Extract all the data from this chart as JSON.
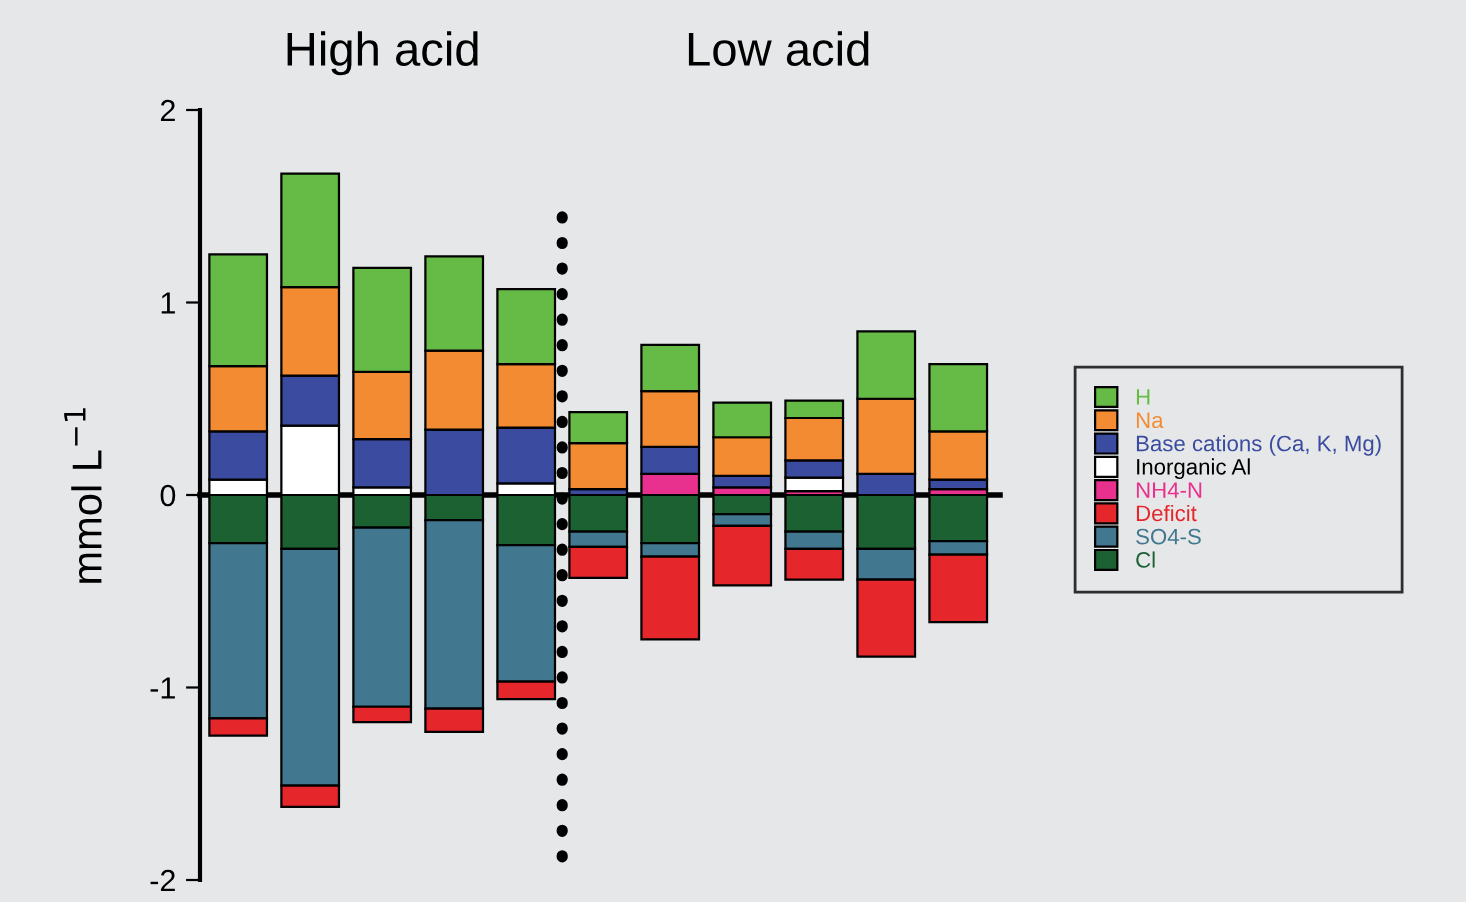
{
  "chart_data": {
    "type": "bar",
    "stacked": true,
    "ylabel": "mmol L$^{−1}$",
    "annotations": [
      "High acid",
      "Low acid"
    ],
    "categories": [
      null,
      null,
      null,
      null,
      null,
      null,
      null,
      null,
      null,
      null,
      null
    ],
    "series": [
      {
        "name": "Cl",
        "color": "#1b6132",
        "values": [
          -0.25,
          -0.28,
          -0.17,
          -0.13,
          -0.26,
          -0.19,
          -0.25,
          -0.1,
          -0.19,
          -0.28,
          -0.24
        ]
      },
      {
        "name": "SO4-S",
        "color": "#41788f",
        "values": [
          -0.91,
          -1.23,
          -0.93,
          -0.98,
          -0.71,
          -0.08,
          -0.07,
          -0.06,
          -0.09,
          -0.16,
          -0.07
        ]
      },
      {
        "name": "Deficit",
        "color": "#e5262a",
        "values": [
          -0.09,
          -0.11,
          -0.08,
          -0.12,
          -0.09,
          -0.16,
          -0.43,
          -0.31,
          -0.16,
          -0.4,
          -0.35
        ]
      },
      {
        "name": "NH4-N",
        "color": "#e8318e",
        "values": [
          null,
          null,
          null,
          null,
          null,
          null,
          0.11,
          0.04,
          0.02,
          null,
          0.03
        ]
      },
      {
        "name": "Inorganic Al",
        "color": "#ffffff",
        "values": [
          0.08,
          0.36,
          0.04,
          null,
          0.06,
          null,
          null,
          null,
          0.07,
          null,
          null
        ]
      },
      {
        "name": "Base cations (Ca, K, Mg)",
        "color": "#3a4ba0",
        "values": [
          0.25,
          0.26,
          0.25,
          0.34,
          0.29,
          0.03,
          0.14,
          0.06,
          0.09,
          0.11,
          0.05
        ]
      },
      {
        "name": "Na",
        "color": "#f38b33",
        "values": [
          0.34,
          0.46,
          0.35,
          0.41,
          0.33,
          0.24,
          0.29,
          0.2,
          0.22,
          0.39,
          0.25
        ]
      },
      {
        "name": "H",
        "color": "#66bb46",
        "values": [
          0.58,
          0.59,
          0.54,
          0.49,
          0.39,
          0.16,
          0.24,
          0.18,
          0.09,
          0.35,
          0.35
        ]
      }
    ],
    "ylim": [
      -2,
      2
    ],
    "yticks": [
      -2,
      -1,
      0,
      1,
      2
    ],
    "grid": false,
    "legend": "right",
    "tick_labels": "y"
  }
}
